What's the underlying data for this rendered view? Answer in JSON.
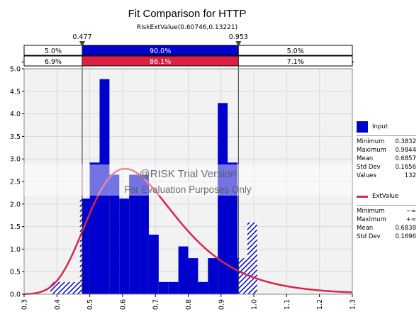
{
  "chart_data": {
    "type": "bar",
    "title": "Fit Comparison for HTTP",
    "subtitle": "RiskExtValue(0.60746,0.13221)",
    "markers": {
      "left": "0.477",
      "right": "0.953",
      "left_value": 0.477,
      "right_value": 0.953
    },
    "band_input": {
      "left": "5.0%",
      "center": "90.0%",
      "right": "5.0%"
    },
    "band_fit": {
      "left": "6.9%",
      "center": "86.1%",
      "right": "7.1%"
    },
    "xlim": [
      0.3,
      1.3
    ],
    "ylim": [
      0,
      5.0
    ],
    "x_ticks": [
      "0.3",
      "0.4",
      "0.5",
      "0.6",
      "0.7",
      "0.8",
      "0.9",
      "1.0",
      "1.1",
      "1.2",
      "1.3"
    ],
    "y_ticks": [
      "0.0",
      "0.5",
      "1.0",
      "1.5",
      "2.0",
      "2.5",
      "3.0",
      "3.5",
      "4.0",
      "4.5",
      "5.0"
    ],
    "grid": true,
    "histogram": {
      "bin_start": 0.38,
      "bin_width": 0.03,
      "values": [
        0.27,
        0.27,
        0.27,
        2.12,
        2.92,
        4.77,
        2.65,
        2.12,
        2.65,
        2.65,
        1.32,
        0.27,
        0.27,
        1.06,
        0.8,
        0.27,
        0.8,
        4.24,
        2.92,
        0.8,
        1.59
      ]
    },
    "series": [
      {
        "name": "Input",
        "type": "histogram",
        "color": "#0000cc"
      },
      {
        "name": "ExtValue",
        "type": "line",
        "color": "#d9264a",
        "params": {
          "mu": 0.60746,
          "beta": 0.13221
        }
      }
    ],
    "legend_position": "right"
  },
  "legend": {
    "input": {
      "label": "Input",
      "stats": [
        {
          "name": "Minimum",
          "value": "0.3832"
        },
        {
          "name": "Maximum",
          "value": "0.9844"
        },
        {
          "name": "Mean",
          "value": "0.6857"
        },
        {
          "name": "Std Dev",
          "value": "0.1656"
        },
        {
          "name": "Values",
          "value": "132"
        }
      ]
    },
    "fit": {
      "label": "ExtValue",
      "stats": [
        {
          "name": "Minimum",
          "value": "−∞"
        },
        {
          "name": "Maximum",
          "value": "+∞"
        },
        {
          "name": "Mean",
          "value": "0.6838"
        },
        {
          "name": "Std Dev",
          "value": "0.1696"
        }
      ]
    }
  },
  "watermark": {
    "line1": "@RISK Trial Version",
    "line2": "For Evaluation Purposes Only"
  }
}
